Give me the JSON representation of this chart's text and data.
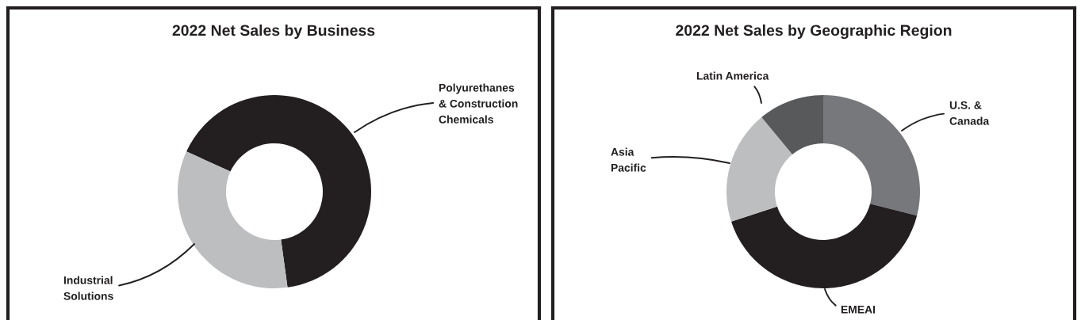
{
  "chart_data": [
    {
      "type": "donut",
      "title": "2022 Net Sales by Business",
      "categories": [
        "Polyurethanes\n& Construction\nChemicals",
        "Industrial\nSolutions"
      ],
      "values": [
        66,
        34
      ],
      "colors": [
        "#231f20",
        "#bcbec0"
      ]
    },
    {
      "type": "donut",
      "title": "2022 Net Sales by Geographic Region",
      "categories": [
        "U.S. &\nCanada",
        "EMEAI",
        "Asia\nPacific",
        "Latin America"
      ],
      "values": [
        29,
        41,
        19,
        11
      ],
      "colors": [
        "#77787b",
        "#231f20",
        "#bcbec0",
        "#58595b"
      ]
    }
  ]
}
